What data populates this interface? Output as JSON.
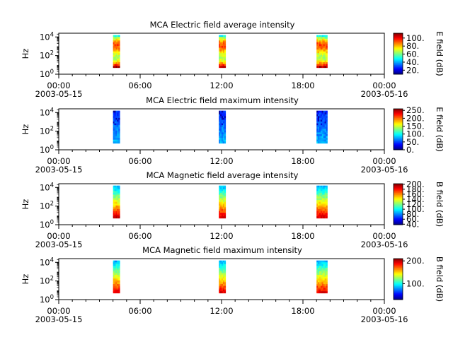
{
  "chart_data": [
    {
      "type": "heatmap",
      "title": "MCA  Electric field average intensity",
      "ylabel": "Hz",
      "colorbar_label": "E field (dB)",
      "colorbar_ticks": [
        "20.",
        "40.",
        "60.",
        "80.",
        "100."
      ],
      "clim": [
        10,
        112
      ],
      "colorbar_levels": [
        20,
        40,
        60,
        80,
        100
      ],
      "x_tick_labels": [
        "00:00",
        "06:00",
        "12:00",
        "18:00",
        "00:00"
      ],
      "x_date_labels": [
        "2003-05-15",
        "2003-05-16"
      ],
      "y_tick_labels": [
        "0",
        "2",
        "4"
      ],
      "y_tick_base": "10",
      "xlim_hours": [
        0,
        24
      ],
      "ylim_log10": [
        0,
        4.4
      ],
      "bursts": [
        {
          "start_hour": 4.0,
          "end_hour": 4.5,
          "low_hz_log10": 0.7,
          "high_hz_log10": 4.2
        },
        {
          "start_hour": 11.8,
          "end_hour": 12.3,
          "low_hz_log10": 0.7,
          "high_hz_log10": 4.2
        },
        {
          "start_hour": 19.0,
          "end_hour": 19.8,
          "low_hz_log10": 0.7,
          "high_hz_log10": 4.2
        }
      ]
    },
    {
      "type": "heatmap",
      "title": "MCA  Electric field maximum intensity",
      "ylabel": "Hz",
      "colorbar_label": "E field (dB)",
      "colorbar_ticks": [
        "0.",
        "50.",
        "100.",
        "150.",
        "200.",
        "250."
      ],
      "clim": [
        0,
        260
      ],
      "colorbar_levels": [
        0,
        50,
        100,
        150,
        200,
        250
      ],
      "x_tick_labels": [
        "00:00",
        "06:00",
        "12:00",
        "18:00",
        "00:00"
      ],
      "x_date_labels": [
        "2003-05-15",
        "2003-05-16"
      ],
      "y_tick_labels": [
        "0",
        "2",
        "4"
      ],
      "y_tick_base": "10",
      "xlim_hours": [
        0,
        24
      ],
      "ylim_log10": [
        0,
        4.4
      ],
      "bursts": [
        {
          "start_hour": 4.0,
          "end_hour": 4.5,
          "low_hz_log10": 0.7,
          "high_hz_log10": 4.2
        },
        {
          "start_hour": 11.8,
          "end_hour": 12.3,
          "low_hz_log10": 0.7,
          "high_hz_log10": 4.2
        },
        {
          "start_hour": 19.0,
          "end_hour": 19.8,
          "low_hz_log10": 0.7,
          "high_hz_log10": 4.2
        }
      ]
    },
    {
      "type": "heatmap",
      "title": "MCA  Magnetic field average intensity",
      "ylabel": "Hz",
      "colorbar_label": "B field (dB)",
      "colorbar_ticks": [
        "40.",
        "60.",
        "80.",
        "100.",
        "120.",
        "140.",
        "160.",
        "180.",
        "200."
      ],
      "clim": [
        38,
        202
      ],
      "colorbar_levels": [
        40,
        60,
        80,
        100,
        120,
        140,
        160,
        180,
        200
      ],
      "x_tick_labels": [
        "00:00",
        "06:00",
        "12:00",
        "18:00",
        "00:00"
      ],
      "x_date_labels": [
        "2003-05-15",
        "2003-05-16"
      ],
      "y_tick_labels": [
        "0",
        "2",
        "4"
      ],
      "y_tick_base": "10",
      "xlim_hours": [
        0,
        24
      ],
      "ylim_log10": [
        0,
        4.4
      ],
      "bursts": [
        {
          "start_hour": 4.0,
          "end_hour": 4.5,
          "low_hz_log10": 0.7,
          "high_hz_log10": 4.2
        },
        {
          "start_hour": 11.8,
          "end_hour": 12.3,
          "low_hz_log10": 0.7,
          "high_hz_log10": 4.2
        },
        {
          "start_hour": 19.0,
          "end_hour": 19.8,
          "low_hz_log10": 0.7,
          "high_hz_log10": 4.2
        }
      ]
    },
    {
      "type": "heatmap",
      "title": "MCA  Magnetic field maximum intensity",
      "ylabel": "Hz",
      "colorbar_label": "B field (dB)",
      "colorbar_ticks": [
        "100.",
        "200."
      ],
      "clim": [
        30,
        210
      ],
      "colorbar_levels": [
        100,
        200
      ],
      "x_tick_labels": [
        "00:00",
        "06:00",
        "12:00",
        "18:00",
        "00:00"
      ],
      "x_date_labels": [
        "2003-05-15",
        "2003-05-16"
      ],
      "y_tick_labels": [
        "0",
        "2",
        "4"
      ],
      "y_tick_base": "10",
      "xlim_hours": [
        0,
        24
      ],
      "ylim_log10": [
        0,
        4.4
      ],
      "bursts": [
        {
          "start_hour": 4.0,
          "end_hour": 4.5,
          "low_hz_log10": 0.7,
          "high_hz_log10": 4.2
        },
        {
          "start_hour": 11.8,
          "end_hour": 12.3,
          "low_hz_log10": 0.7,
          "high_hz_log10": 4.2
        },
        {
          "start_hour": 19.0,
          "end_hour": 19.8,
          "low_hz_log10": 0.7,
          "high_hz_log10": 4.2
        }
      ]
    }
  ]
}
